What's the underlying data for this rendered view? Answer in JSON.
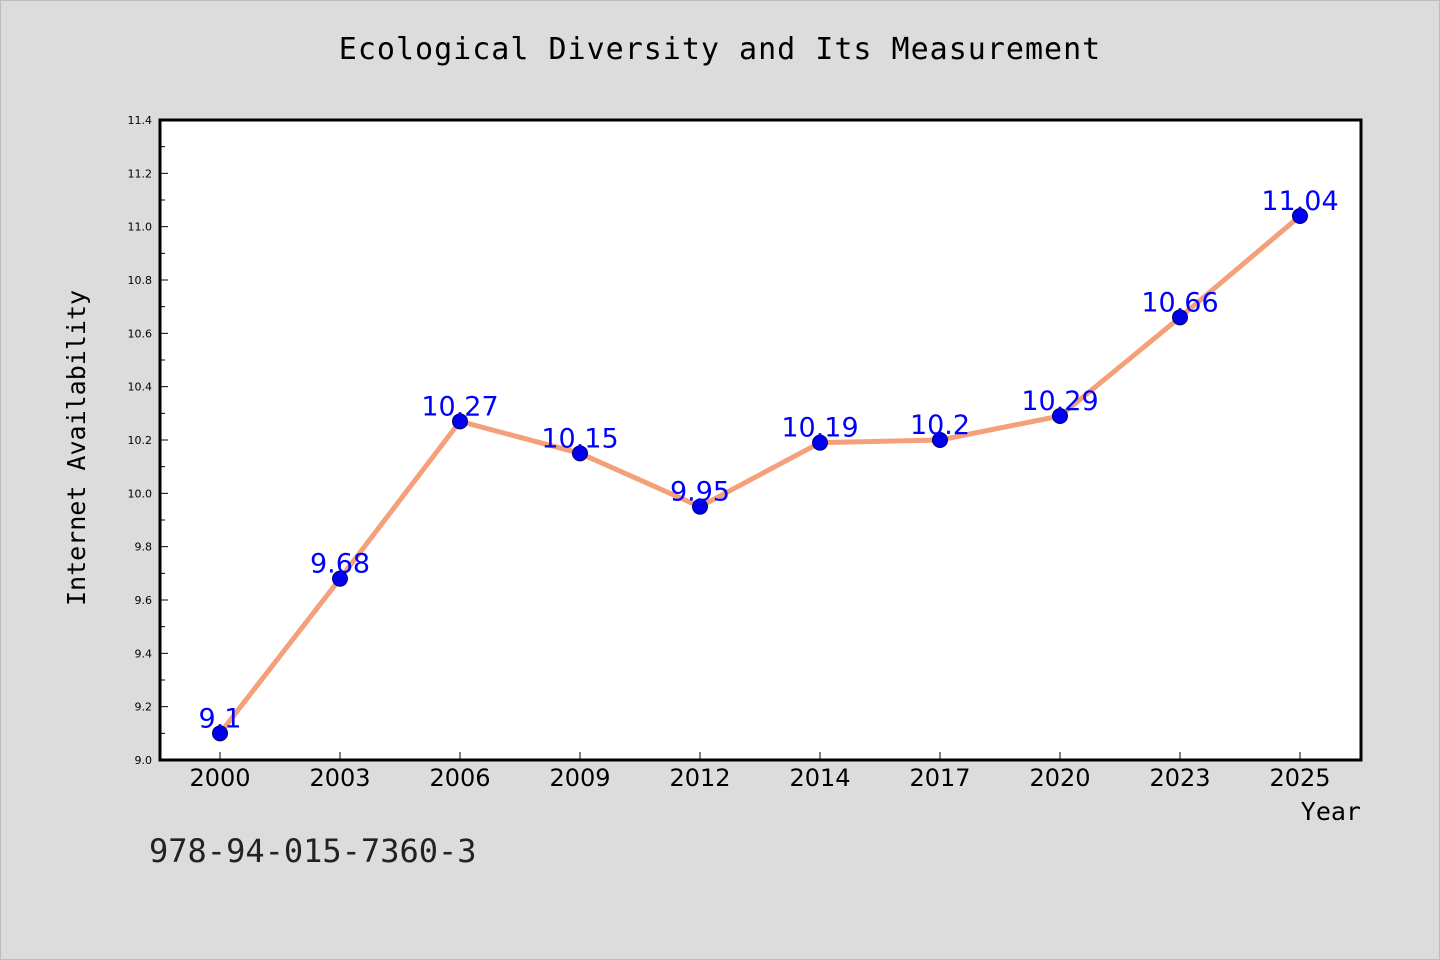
{
  "page": {
    "background": "#dcdcdc",
    "footer_code": "978-94-015-7360-3"
  },
  "chart_data": {
    "type": "line",
    "title": "Ecological Diversity and Its Measurement",
    "xlabel": "Year",
    "ylabel": "Internet Availability",
    "categories": [
      "2000",
      "2003",
      "2006",
      "2009",
      "2012",
      "2014",
      "2017",
      "2020",
      "2023",
      "2025"
    ],
    "series": [
      {
        "values": [
          9.1,
          9.68,
          10.27,
          10.15,
          9.95,
          10.19,
          10.2,
          10.29,
          10.66,
          11.04
        ],
        "labels": [
          "9.1",
          "9.68",
          "10.27",
          "10.15",
          "9.95",
          "10.19",
          "10.2",
          "10.29",
          "10.66",
          "11.04"
        ],
        "line_color": "#f4a07a",
        "marker_color": "#0000ee",
        "label_color": "#0000ff"
      }
    ],
    "ylim": [
      9.0,
      11.4
    ],
    "yticks": [
      "9.0",
      "9.2",
      "9.4",
      "9.6",
      "9.8",
      "10.0",
      "10.2",
      "10.4",
      "10.6",
      "10.8",
      "11.0",
      "11.2",
      "11.4"
    ],
    "grid": false,
    "legend": "none"
  }
}
